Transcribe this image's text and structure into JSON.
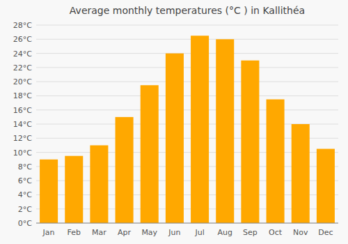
{
  "chart_data": {
    "type": "bar",
    "title": "Average monthly temperatures (°C ) in Kallithéa",
    "categories": [
      "Jan",
      "Feb",
      "Mar",
      "Apr",
      "May",
      "Jun",
      "Jul",
      "Aug",
      "Sep",
      "Oct",
      "Nov",
      "Dec"
    ],
    "values": [
      9.0,
      9.5,
      11.0,
      15.0,
      19.5,
      24.0,
      26.5,
      26.0,
      23.0,
      17.5,
      14.0,
      10.5
    ],
    "color": "#FFA800",
    "ylim": [
      0,
      28
    ],
    "yticks": [
      {
        "value": 0,
        "label": "0°C"
      },
      {
        "value": 2,
        "label": "2°C"
      },
      {
        "value": 4,
        "label": "4°C"
      },
      {
        "value": 6,
        "label": "6°C"
      },
      {
        "value": 8,
        "label": "8°C"
      },
      {
        "value": 10,
        "label": "10°C"
      },
      {
        "value": 12,
        "label": "12°C"
      },
      {
        "value": 14,
        "label": "14°C"
      },
      {
        "value": 16,
        "label": "16°C"
      },
      {
        "value": 18,
        "label": "18°C"
      },
      {
        "value": 20,
        "label": "20°C"
      },
      {
        "value": 22,
        "label": "22°C"
      },
      {
        "value": 24,
        "label": "24°C"
      },
      {
        "value": 26,
        "label": "26°C"
      },
      {
        "value": 28,
        "label": "28°C"
      }
    ],
    "grid": true
  }
}
